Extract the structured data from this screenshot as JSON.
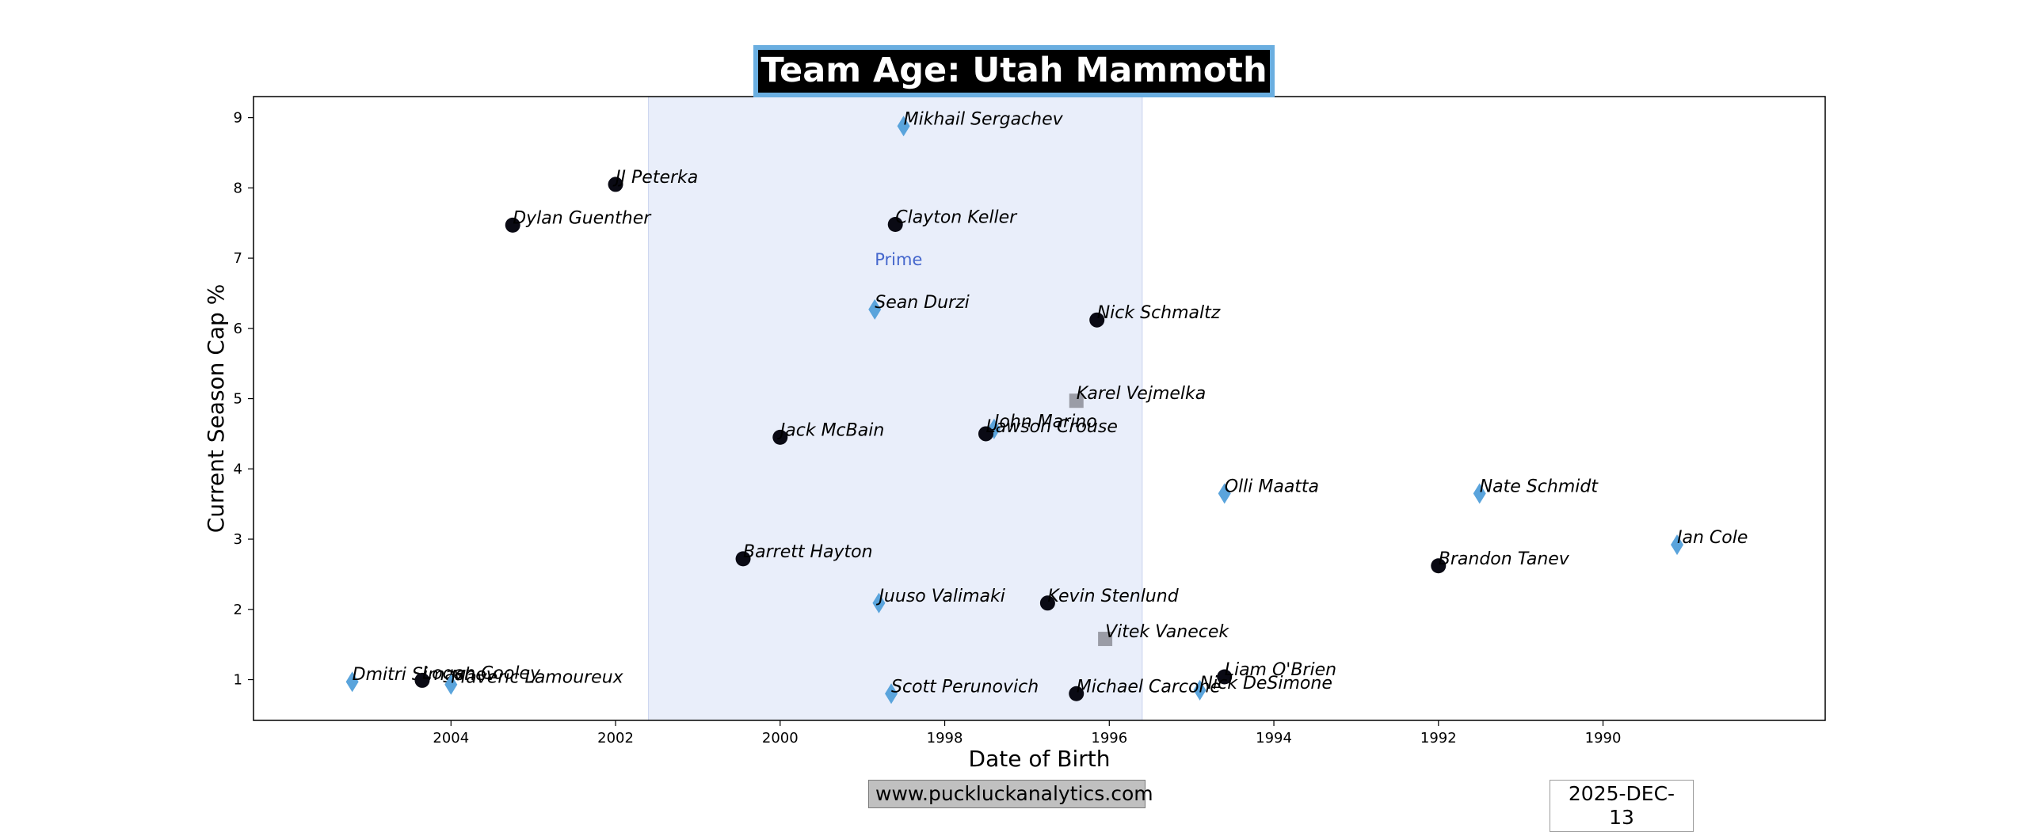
{
  "chart_data": {
    "type": "scatter",
    "title": "Team Age: Utah Mammoth",
    "xlabel": "Date of Birth",
    "ylabel": "Current Season Cap %",
    "x_ticks": [
      "2004",
      "2002",
      "2000",
      "1998",
      "1996",
      "1994",
      "1992",
      "1990"
    ],
    "y_ticks": [
      "1",
      "2",
      "3",
      "4",
      "5",
      "6",
      "7",
      "8",
      "9"
    ],
    "xlim": [
      2006.4,
      1987.3
    ],
    "ylim": [
      0.42,
      9.3
    ],
    "x_reversed": true,
    "grid": false,
    "prime_band": {
      "label": "Prime",
      "from": 2001.6,
      "to": 1995.6,
      "color": "#e9eefa"
    },
    "colors": {
      "circle": "#0a0a14",
      "diamond": "#5aa4dc",
      "square": "#9a9ca6",
      "prime_label": "#4466cc",
      "title_bg": "#000000",
      "title_border": "#6aaee0"
    },
    "points": [
      {
        "name": "Mikhail Sergachev",
        "x": 1998.5,
        "y": 8.88,
        "marker": "diamond"
      },
      {
        "name": "JJ Peterka",
        "x": 2002.0,
        "y": 8.05,
        "marker": "circle"
      },
      {
        "name": "Dylan Guenther",
        "x": 2003.25,
        "y": 7.47,
        "marker": "circle"
      },
      {
        "name": "Clayton Keller",
        "x": 1998.6,
        "y": 7.48,
        "marker": "circle"
      },
      {
        "name": "Sean Durzi",
        "x": 1998.85,
        "y": 6.27,
        "marker": "diamond"
      },
      {
        "name": "Nick Schmaltz",
        "x": 1996.15,
        "y": 6.12,
        "marker": "circle"
      },
      {
        "name": "Karel Vejmelka",
        "x": 1996.4,
        "y": 4.97,
        "marker": "square"
      },
      {
        "name": "John Marino",
        "x": 1997.4,
        "y": 4.57,
        "marker": "diamond"
      },
      {
        "name": "Lawson Crouse",
        "x": 1997.5,
        "y": 4.5,
        "marker": "circle"
      },
      {
        "name": "Jack McBain",
        "x": 2000.0,
        "y": 4.45,
        "marker": "circle"
      },
      {
        "name": "Olli Maatta",
        "x": 1994.6,
        "y": 3.65,
        "marker": "diamond"
      },
      {
        "name": "Nate Schmidt",
        "x": 1991.5,
        "y": 3.65,
        "marker": "diamond"
      },
      {
        "name": "Ian Cole",
        "x": 1989.1,
        "y": 2.92,
        "marker": "diamond"
      },
      {
        "name": "Barrett Hayton",
        "x": 2000.45,
        "y": 2.72,
        "marker": "circle"
      },
      {
        "name": "Brandon Tanev",
        "x": 1992.0,
        "y": 2.62,
        "marker": "circle"
      },
      {
        "name": "Juuso Valimaki",
        "x": 1998.8,
        "y": 2.09,
        "marker": "diamond"
      },
      {
        "name": "Kevin Stenlund",
        "x": 1996.75,
        "y": 2.09,
        "marker": "circle"
      },
      {
        "name": "Vitek Vanecek",
        "x": 1996.05,
        "y": 1.58,
        "marker": "square"
      },
      {
        "name": "Liam O'Brien",
        "x": 1994.6,
        "y": 1.04,
        "marker": "circle"
      },
      {
        "name": "Nick DeSimone",
        "x": 1994.9,
        "y": 0.85,
        "marker": "diamond"
      },
      {
        "name": "Michael Carcone",
        "x": 1996.4,
        "y": 0.8,
        "marker": "circle"
      },
      {
        "name": "Scott Perunovich",
        "x": 1998.65,
        "y": 0.8,
        "marker": "diamond"
      },
      {
        "name": "Dmitri Simashev",
        "x": 2005.2,
        "y": 0.97,
        "marker": "diamond"
      },
      {
        "name": "Logan Cooley",
        "x": 2004.35,
        "y": 0.99,
        "marker": "circle"
      },
      {
        "name": "Maveric Lamoureux",
        "x": 2004.0,
        "y": 0.93,
        "marker": "diamond"
      }
    ]
  },
  "footer": {
    "website": "www.puckluckanalytics.com",
    "date": "2025-DEC-13"
  }
}
